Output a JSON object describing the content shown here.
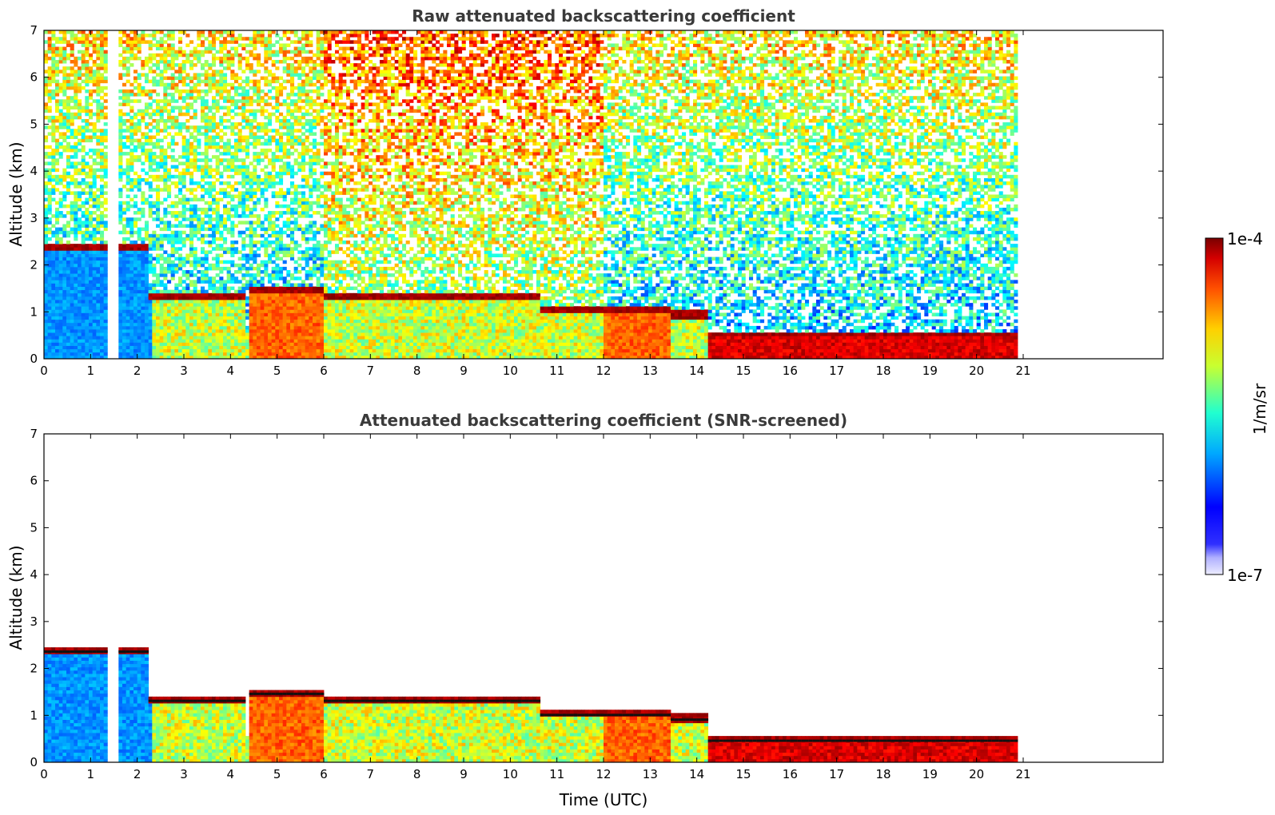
{
  "chart_data": [
    {
      "type": "heatmap",
      "title": "Raw attenuated backscattering coefficient",
      "xlabel": "",
      "ylabel": "Altitude (km)",
      "xlim": [
        0,
        24
      ],
      "ylim": [
        0,
        7
      ],
      "x_ticks": [
        "0",
        "1",
        "2",
        "3",
        "4",
        "5",
        "6",
        "7",
        "8",
        "9",
        "10",
        "11",
        "12",
        "13",
        "14",
        "15",
        "16",
        "17",
        "18",
        "19",
        "20",
        "21"
      ],
      "y_ticks": [
        "0",
        "1",
        "2",
        "3",
        "4",
        "5",
        "6",
        "7"
      ],
      "data_extent_x": [
        0,
        20.8
      ],
      "gap_x": [
        1.42,
        1.56
      ],
      "colormap": "jet",
      "color_scale": "log",
      "features": [
        {
          "feature": "cloud layer",
          "x": [
            0,
            2.2
          ],
          "y": 2.35
        },
        {
          "feature": "cloud layer",
          "x": [
            2.2,
            4.3
          ],
          "y": 1.3
        },
        {
          "feature": "cloud layer",
          "x": [
            4.4,
            6.0
          ],
          "y": 1.45
        },
        {
          "feature": "cloud layer",
          "x": [
            6.0,
            10.6
          ],
          "y": 1.3
        },
        {
          "feature": "cloud layer",
          "x": [
            10.6,
            13.4
          ],
          "y": 1.0
        },
        {
          "feature": "cloud layer",
          "x": [
            13.4,
            14.2
          ],
          "y": 0.9
        },
        {
          "feature": "boundary layer top",
          "x": [
            14.2,
            20.8
          ],
          "y": 0.45
        }
      ]
    },
    {
      "type": "heatmap",
      "title": "Attenuated backscattering coefficient (SNR-screened)",
      "xlabel": "Time (UTC)",
      "ylabel": "Altitude (km)",
      "xlim": [
        0,
        24
      ],
      "ylim": [
        0,
        7
      ],
      "x_ticks": [
        "0",
        "1",
        "2",
        "3",
        "4",
        "5",
        "6",
        "7",
        "8",
        "9",
        "10",
        "11",
        "12",
        "13",
        "14",
        "15",
        "16",
        "17",
        "18",
        "19",
        "20",
        "21"
      ],
      "y_ticks": [
        "0",
        "1",
        "2",
        "3",
        "4",
        "5",
        "6",
        "7"
      ],
      "data_extent_x": [
        0,
        20.8
      ],
      "gap_x": [
        1.42,
        1.56
      ],
      "colormap": "jet",
      "color_scale": "log",
      "screened": true
    }
  ],
  "colorbar": {
    "label": "1/m/sr",
    "max_label": "1e-4",
    "min_label": "1e-7",
    "colors": [
      "#8b0000",
      "#cc0000",
      "#ff3000",
      "#ff8000",
      "#ffc000",
      "#e8e800",
      "#a0ff60",
      "#40ffc0",
      "#00c8ff",
      "#0060ff",
      "#0000ff",
      "#0000e0",
      "#6060ff",
      "#9090ff",
      "#c0c0ff",
      "#e8e8ff"
    ]
  }
}
